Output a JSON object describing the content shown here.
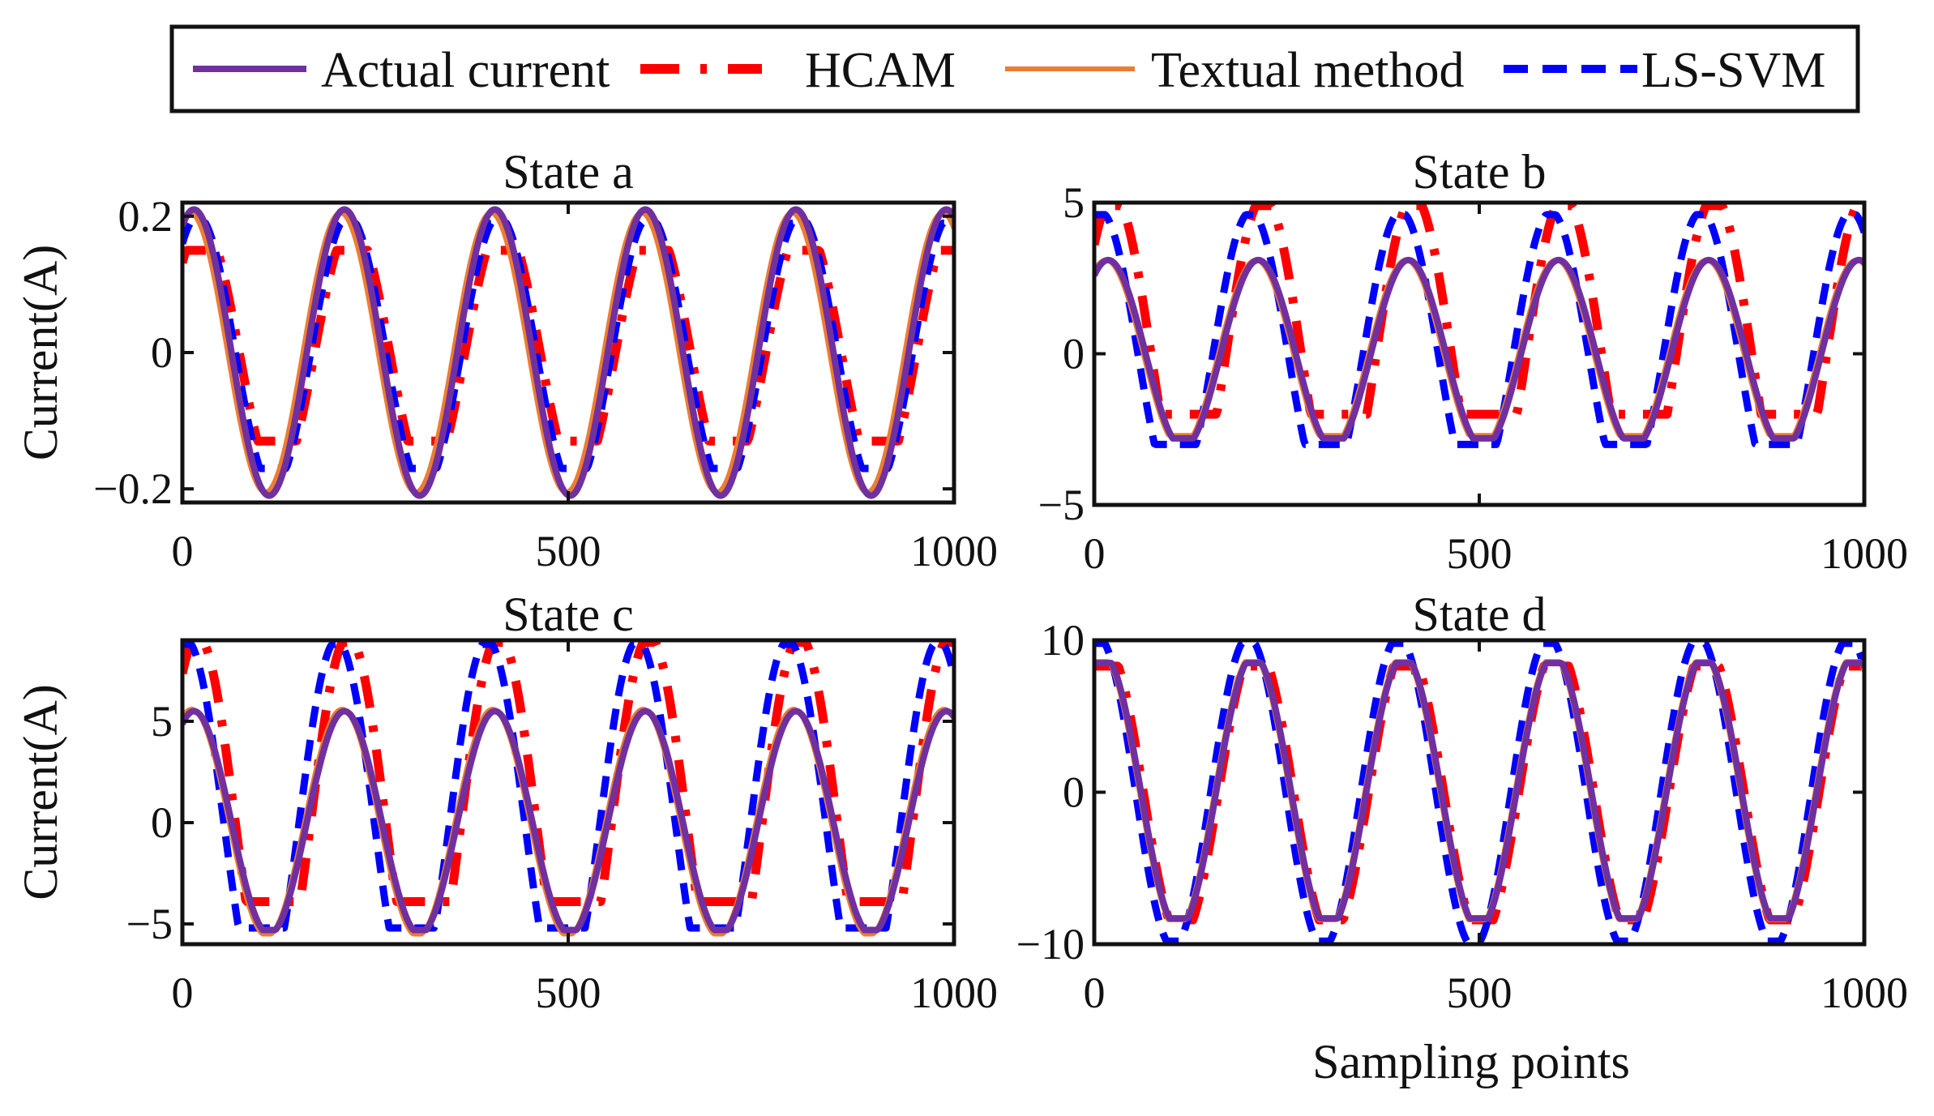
{
  "legend": [
    {
      "label": "Actual current",
      "color": "#7030A0",
      "style": "solid"
    },
    {
      "label": "HCAM",
      "color": "#FF0000",
      "style": "dashdot"
    },
    {
      "label": "Textual method",
      "color": "#ED7D31",
      "style": "solid"
    },
    {
      "label": "LS-SVM",
      "color": "#0000FF",
      "style": "dashed"
    }
  ],
  "chart_data": [
    {
      "type": "line",
      "title": "State a",
      "xlabel": "",
      "ylabel": "Current(A)",
      "xlim": [
        0,
        1000
      ],
      "ylim": [
        -0.22,
        0.22
      ],
      "xticks": [
        0,
        500,
        1000
      ],
      "xtick_labels": [
        "0",
        "500",
        "1000"
      ],
      "yticks": [
        -0.2,
        0,
        0.2
      ],
      "ytick_labels": [
        "−0.2",
        "0",
        "0.2"
      ],
      "period": 195,
      "series": [
        {
          "name": "Actual current",
          "amplitude": 0.21,
          "phase": 15,
          "clip_high": null,
          "clip_low": null
        },
        {
          "name": "HCAM",
          "amplitude": 0.19,
          "phase": 25,
          "clip_high": 0.15,
          "clip_low": -0.13
        },
        {
          "name": "Textual method",
          "amplitude": 0.205,
          "phase": 10,
          "clip_high": null,
          "clip_low": null
        },
        {
          "name": "LS-SVM",
          "amplitude": 0.2,
          "phase": 20,
          "clip_high": 0.19,
          "clip_low": -0.17
        }
      ]
    },
    {
      "type": "line",
      "title": "State b",
      "xlabel": "",
      "ylabel": "",
      "xlim": [
        0,
        1000
      ],
      "ylim": [
        -5,
        5
      ],
      "xticks": [
        0,
        500,
        1000
      ],
      "xtick_labels": [
        "0",
        "500",
        "1000"
      ],
      "yticks": [
        -5,
        0,
        5
      ],
      "ytick_labels": [
        "−5",
        "0",
        "5"
      ],
      "period": 195,
      "series": [
        {
          "name": "Actual current",
          "amplitude": 3.1,
          "phase": 18,
          "clip_high": 3.2,
          "clip_low": -2.8
        },
        {
          "name": "HCAM",
          "amplitude": 5.2,
          "phase": 25,
          "clip_high": 4.9,
          "clip_low": -2.0
        },
        {
          "name": "Textual method",
          "amplitude": 3.1,
          "phase": 15,
          "clip_high": 3.2,
          "clip_low": -2.7
        },
        {
          "name": "LS-SVM",
          "amplitude": 4.7,
          "phase": 8,
          "clip_high": 4.6,
          "clip_low": -3.0
        }
      ]
    },
    {
      "type": "line",
      "title": "State c",
      "xlabel": "",
      "ylabel": "Current(A)",
      "xlim": [
        0,
        1000
      ],
      "ylim": [
        -6,
        9
      ],
      "xticks": [
        0,
        500,
        1000
      ],
      "xtick_labels": [
        "0",
        "500",
        "1000"
      ],
      "yticks": [
        -5,
        0,
        5
      ],
      "ytick_labels": [
        "−5",
        "0",
        "5"
      ],
      "period": 195,
      "series": [
        {
          "name": "Actual current",
          "amplitude": 5.5,
          "phase": 15,
          "clip_high": 5.6,
          "clip_low": -5.3
        },
        {
          "name": "HCAM",
          "amplitude": 9.2,
          "phase": 20,
          "clip_high": 8.9,
          "clip_low": -3.9
        },
        {
          "name": "Textual method",
          "amplitude": 5.6,
          "phase": 12,
          "clip_high": 5.6,
          "clip_low": -5.5
        },
        {
          "name": "LS-SVM",
          "amplitude": 9.0,
          "phase": 5,
          "clip_high": 8.8,
          "clip_low": -5.2
        }
      ]
    },
    {
      "type": "line",
      "title": "State d",
      "xlabel": "Sampling points",
      "ylabel": "",
      "xlim": [
        0,
        1000
      ],
      "ylim": [
        -10,
        10
      ],
      "xticks": [
        0,
        500,
        1000
      ],
      "xtick_labels": [
        "0",
        "500",
        "1000"
      ],
      "yticks": [
        -10,
        0,
        10
      ],
      "ytick_labels": [
        "−10",
        "0",
        "10"
      ],
      "period": 195,
      "series": [
        {
          "name": "Actual current",
          "amplitude": 9.0,
          "phase": 12,
          "clip_high": 8.5,
          "clip_low": -8.3
        },
        {
          "name": "HCAM",
          "amplitude": 9.6,
          "phase": 15,
          "clip_high": 8.3,
          "clip_low": -8.4
        },
        {
          "name": "Textual method",
          "amplitude": 9.0,
          "phase": 10,
          "clip_high": 8.6,
          "clip_low": -8.4
        },
        {
          "name": "LS-SVM",
          "amplitude": 10.2,
          "phase": 5,
          "clip_high": 9.8,
          "clip_low": -9.8
        }
      ]
    }
  ]
}
